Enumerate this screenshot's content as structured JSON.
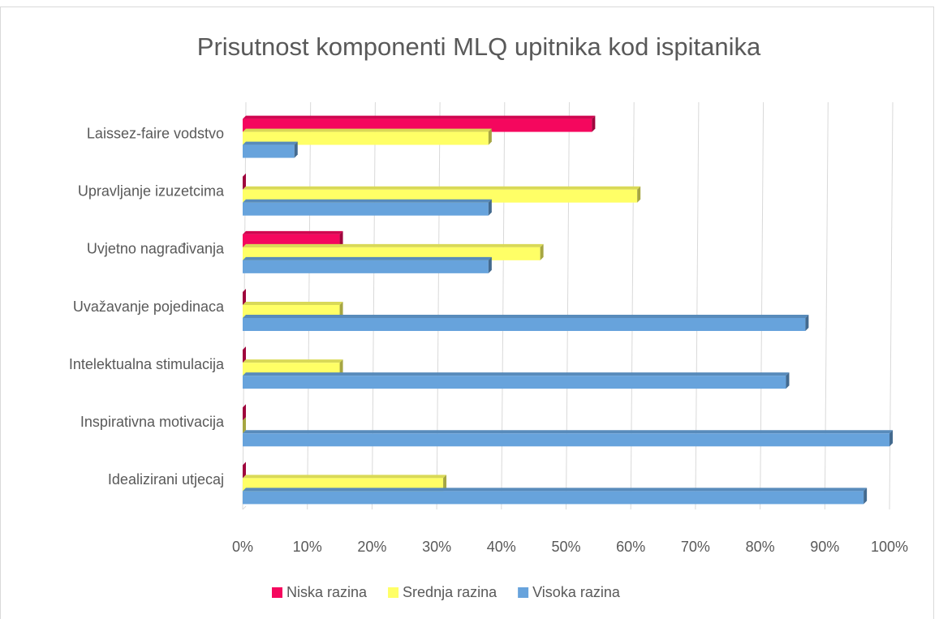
{
  "chart_data": {
    "type": "bar",
    "orientation": "horizontal",
    "title": "Prisutnost komponenti MLQ upitnika kod ispitanika",
    "categories": [
      "Laissez-faire vodstvo",
      "Upravljanje izuzetcima",
      "Uvjetno nagrađivanja",
      "Uvažavanje pojedinaca",
      "Intelektualna stimulacija",
      "Inspirativna motivacija",
      "Idealizirani utjecaj"
    ],
    "series": [
      {
        "name": "Niska razina",
        "color": "#f5075e",
        "values": [
          54,
          0,
          15,
          0,
          0,
          0,
          0
        ]
      },
      {
        "name": "Srednja razina",
        "color": "#ffff66",
        "values": [
          38,
          61,
          46,
          15,
          15,
          0,
          31
        ]
      },
      {
        "name": "Visoka razina",
        "color": "#67a3dc",
        "values": [
          8,
          38,
          38,
          87,
          84,
          100,
          96
        ]
      }
    ],
    "xlim": [
      0,
      100
    ],
    "xticks": [
      {
        "value": 0,
        "label": "0%"
      },
      {
        "value": 10,
        "label": "10%"
      },
      {
        "value": 20,
        "label": "20%"
      },
      {
        "value": 30,
        "label": "30%"
      },
      {
        "value": 40,
        "label": "40%"
      },
      {
        "value": 50,
        "label": "50%"
      },
      {
        "value": 60,
        "label": "60%"
      },
      {
        "value": 70,
        "label": "70%"
      },
      {
        "value": 80,
        "label": "80%"
      },
      {
        "value": 90,
        "label": "90%"
      },
      {
        "value": 100,
        "label": "100%"
      }
    ],
    "grid": true,
    "legend": "bottom"
  }
}
